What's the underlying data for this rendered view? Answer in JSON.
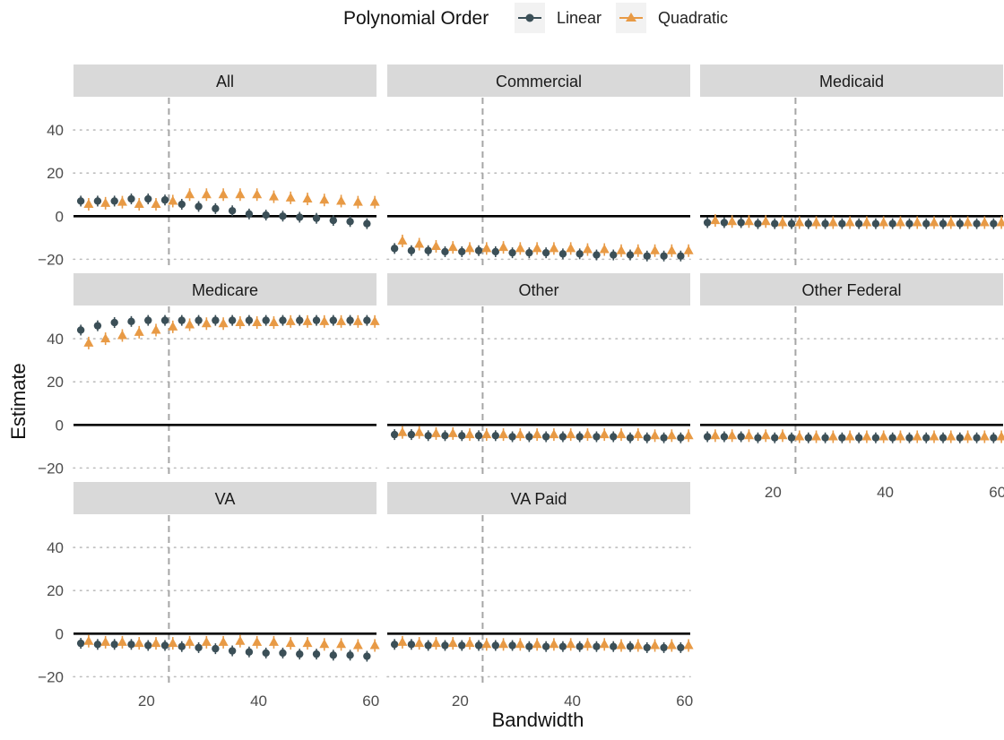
{
  "legend": {
    "title": "Polynomial Order",
    "items": [
      {
        "label": "Linear",
        "color": "#3B4F57",
        "shape": "circle"
      },
      {
        "label": "Quadratic",
        "color": "#E89A45",
        "shape": "triangle"
      }
    ]
  },
  "axes": {
    "xlabel": "Bandwidth",
    "ylabel": "Estimate",
    "xlim": [
      7,
      61
    ],
    "ylim": [
      -24,
      55
    ],
    "xticks": [
      20,
      40,
      60
    ],
    "yticks": [
      -20,
      0,
      20,
      40
    ],
    "vline_x": 24,
    "hline_y": 0
  },
  "chart_data": {
    "type": "scatter",
    "xlabel": "Bandwidth",
    "ylabel": "Estimate",
    "x": [
      9,
      12,
      15,
      18,
      21,
      24,
      27,
      30,
      33,
      36,
      39,
      42,
      45,
      48,
      51,
      54,
      57,
      60
    ],
    "series_names": [
      "Linear",
      "Quadratic"
    ],
    "grid": "dotted horizontal major gridlines",
    "legend_position": "top",
    "facets": [
      {
        "label": "All",
        "linear": [
          7,
          7,
          7,
          8,
          8,
          7.5,
          5.5,
          4.5,
          3.5,
          2.5,
          1,
          0.5,
          0,
          -0.5,
          -1,
          -2,
          -2.5,
          -3.5
        ],
        "quadratic": [
          5.5,
          6,
          6.5,
          5.5,
          5.5,
          7,
          10,
          10,
          10,
          10,
          10,
          9,
          8.5,
          8,
          7.5,
          7,
          6.5,
          6.5
        ]
      },
      {
        "label": "Commercial",
        "linear": [
          -15,
          -16,
          -16,
          -16.5,
          -16.5,
          -16,
          -16.5,
          -17,
          -17,
          -17,
          -17.5,
          -17.5,
          -18,
          -18,
          -18,
          -18.5,
          -18.5,
          -18.5
        ],
        "quadratic": [
          -11.5,
          -13,
          -14,
          -14.5,
          -15,
          -15,
          -14.5,
          -15,
          -15,
          -15,
          -15,
          -15.5,
          -15.5,
          -16,
          -16,
          -16,
          -16,
          -16
        ]
      },
      {
        "label": "Medicaid",
        "linear": [
          -3,
          -3,
          -3,
          -3.5,
          -3.5,
          -3.5,
          -3.5,
          -3.5,
          -3.5,
          -3.5,
          -3.5,
          -3.5,
          -3.5,
          -3.5,
          -3.5,
          -3.5,
          -3.5,
          -3.5
        ],
        "quadratic": [
          -2,
          -2.5,
          -2.5,
          -2.5,
          -3,
          -3,
          -3,
          -3,
          -3,
          -3,
          -3,
          -3,
          -3,
          -3,
          -3,
          -3,
          -3,
          -3
        ]
      },
      {
        "label": "Medicare",
        "linear": [
          44,
          46,
          47.5,
          48,
          48.5,
          48.5,
          48.5,
          48.5,
          48.5,
          48.5,
          48.5,
          48.5,
          48.5,
          48.5,
          48.5,
          48.5,
          48.5,
          48.5
        ],
        "quadratic": [
          38,
          40,
          41.5,
          43,
          44,
          45.5,
          46.5,
          47,
          47,
          47.5,
          47.5,
          47.5,
          48,
          48,
          48,
          48,
          48,
          48
        ]
      },
      {
        "label": "Other",
        "linear": [
          -4.5,
          -4.5,
          -5,
          -5,
          -5,
          -5,
          -5,
          -5.5,
          -5.5,
          -5.5,
          -5.5,
          -5.5,
          -5.5,
          -5.5,
          -6,
          -6,
          -6,
          -6
        ],
        "quadratic": [
          -3.5,
          -3.5,
          -4,
          -4,
          -4.5,
          -4.5,
          -4.5,
          -4.5,
          -4.5,
          -4.5,
          -4.5,
          -4.5,
          -4.5,
          -4.5,
          -4.5,
          -5,
          -5,
          -5
        ]
      },
      {
        "label": "Other Federal",
        "linear": [
          -5.5,
          -5.5,
          -5.5,
          -6,
          -6,
          -6,
          -6,
          -6,
          -6,
          -6,
          -6,
          -6,
          -6,
          -6,
          -6,
          -6,
          -6,
          -6
        ],
        "quadratic": [
          -5,
          -5,
          -5,
          -5,
          -5,
          -5.5,
          -5.5,
          -5.5,
          -5.5,
          -5.5,
          -5.5,
          -5.5,
          -5.5,
          -5.5,
          -5.5,
          -5.5,
          -5.5,
          -5.5
        ]
      },
      {
        "label": "VA",
        "linear": [
          -4.5,
          -5,
          -5,
          -5,
          -5.5,
          -5.5,
          -6,
          -6.5,
          -7,
          -8,
          -8.5,
          -9,
          -9,
          -9.5,
          -9.5,
          -10,
          -10,
          -10.5
        ],
        "quadratic": [
          -3.5,
          -4,
          -4,
          -4.5,
          -4.5,
          -4.5,
          -4,
          -4,
          -4,
          -3.5,
          -4,
          -4,
          -4.5,
          -4.5,
          -5,
          -5,
          -5.5,
          -5.5
        ]
      },
      {
        "label": "VA Paid",
        "linear": [
          -5,
          -5,
          -5.5,
          -5.5,
          -5.5,
          -5.5,
          -5.5,
          -5.5,
          -6,
          -6,
          -6,
          -6,
          -6,
          -6,
          -6,
          -6.5,
          -6.5,
          -6.5
        ],
        "quadratic": [
          -4,
          -4.5,
          -4.5,
          -4.5,
          -4.5,
          -5,
          -5,
          -5,
          -5,
          -5,
          -5,
          -5,
          -5,
          -5.5,
          -5.5,
          -5.5,
          -5.5,
          -5.5
        ]
      }
    ]
  }
}
